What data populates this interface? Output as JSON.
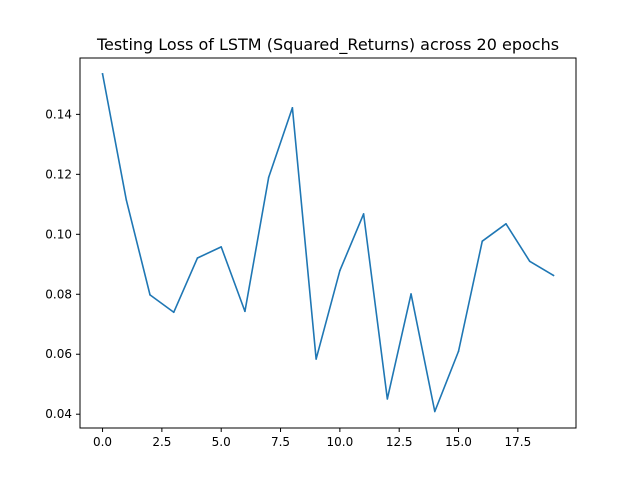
{
  "chart_data": {
    "type": "line",
    "title": "Testing Loss of LSTM (Squared_Returns) across 20 epochs",
    "xlabel": "",
    "ylabel": "",
    "xlim": [
      -0.95,
      19.95
    ],
    "ylim": [
      0.0354,
      0.1588
    ],
    "x_ticks": [
      0.0,
      2.5,
      5.0,
      7.5,
      10.0,
      12.5,
      15.0,
      17.5
    ],
    "x_tick_labels": [
      "0.0",
      "2.5",
      "5.0",
      "7.5",
      "10.0",
      "12.5",
      "15.0",
      "17.5"
    ],
    "y_ticks": [
      0.04,
      0.06,
      0.08,
      0.1,
      0.12,
      0.14
    ],
    "y_tick_labels": [
      "0.04",
      "0.06",
      "0.08",
      "0.10",
      "0.12",
      "0.14"
    ],
    "grid": false,
    "legend": "none",
    "line_color": "#1f77b4",
    "series": [
      {
        "x": [
          0,
          1,
          2,
          3,
          4,
          5,
          6,
          7,
          8,
          9,
          10,
          11,
          12,
          13,
          14,
          15,
          16,
          17,
          18,
          19
        ],
        "values": [
          0.1535,
          0.1115,
          0.0798,
          0.074,
          0.0921,
          0.0958,
          0.0743,
          0.119,
          0.1422,
          0.0584,
          0.0879,
          0.1068,
          0.0451,
          0.0801,
          0.0409,
          0.061,
          0.0977,
          0.1035,
          0.091,
          0.0863
        ]
      }
    ]
  }
}
